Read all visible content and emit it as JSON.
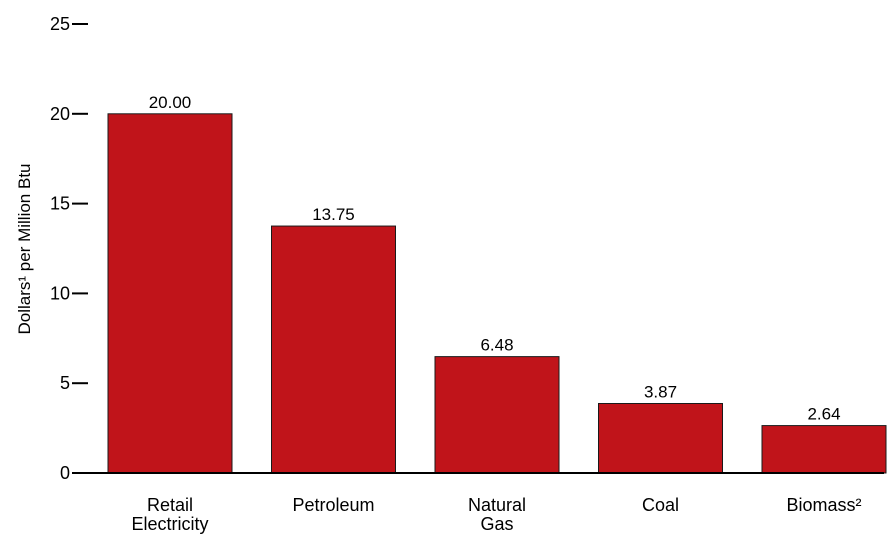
{
  "chart_data": {
    "type": "bar",
    "title": "",
    "xlabel": "",
    "ylabel": "Dollars¹ per Million Btu",
    "ylim": [
      0,
      25
    ],
    "yticks": [
      0,
      5,
      10,
      15,
      20,
      25
    ],
    "grid": false,
    "categories": [
      [
        "Retail",
        "Electricity"
      ],
      [
        "Petroleum"
      ],
      [
        "Natural",
        "Gas"
      ],
      [
        "Coal"
      ],
      [
        "Biomass²"
      ]
    ],
    "values": [
      20.0,
      13.75,
      6.48,
      3.87,
      2.64
    ],
    "value_labels": [
      "20.00",
      "13.75",
      "6.48",
      "3.87",
      "2.64"
    ],
    "colors": {
      "bar": "#c0141a",
      "bar_stroke": "#1a1a1a",
      "axis": "#000000"
    }
  }
}
